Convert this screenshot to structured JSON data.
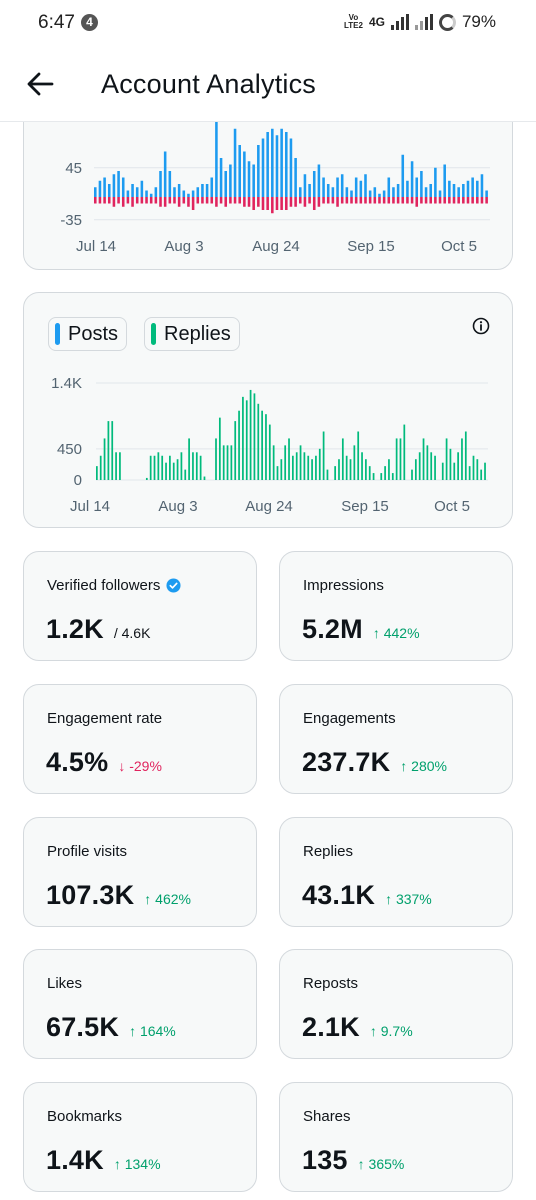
{
  "status_bar": {
    "time": "6:47",
    "notification_count": "4",
    "volte": "Vo LTE2",
    "network": "4G",
    "battery": "79%"
  },
  "header": {
    "title": "Account Analytics"
  },
  "colors": {
    "posts": "#1d9bf0",
    "negative": "#e0245e",
    "replies": "#00ba7c",
    "up": "#00a06c",
    "down": "#e0245e"
  },
  "icons": {
    "back": "arrow-left-icon",
    "info": "info-icon",
    "verified": "verified-badge-icon"
  },
  "chart_data": [
    {
      "type": "bar",
      "xlabels": [
        "Jul 14",
        "Aug 3",
        "Aug 24",
        "Sep 15",
        "Oct 5"
      ],
      "yticks": [
        "45",
        "-35"
      ],
      "series": [
        {
          "color": "#1d9bf0",
          "values": [
            15,
            25,
            30,
            20,
            35,
            40,
            30,
            10,
            20,
            15,
            25,
            10,
            5,
            15,
            40,
            70,
            40,
            15,
            20,
            10,
            5,
            10,
            15,
            20,
            20,
            30,
            120,
            60,
            40,
            50,
            105,
            80,
            70,
            55,
            50,
            80,
            90,
            100,
            105,
            95,
            105,
            100,
            90,
            60,
            15,
            35,
            20,
            40,
            50,
            30,
            20,
            15,
            30,
            35,
            15,
            10,
            30,
            25,
            35,
            10,
            15,
            5,
            10,
            30,
            15,
            20,
            65,
            25,
            55,
            30,
            40,
            15,
            20,
            45,
            10,
            50,
            25,
            20,
            15,
            20,
            25,
            30,
            25,
            35,
            10
          ]
        },
        {
          "color": "#e0245e",
          "values": [
            -10,
            -10,
            -10,
            -10,
            -15,
            -10,
            -15,
            -10,
            -15,
            -10,
            -10,
            -10,
            -10,
            -10,
            -15,
            -15,
            -10,
            -10,
            -15,
            -10,
            -15,
            -20,
            -10,
            -10,
            -10,
            -10,
            -15,
            -10,
            -15,
            -10,
            -10,
            -10,
            -15,
            -15,
            -20,
            -15,
            -20,
            -20,
            -25,
            -20,
            -20,
            -20,
            -15,
            -15,
            -10,
            -15,
            -10,
            -20,
            -15,
            -10,
            -10,
            -10,
            -15,
            -10,
            -10,
            -10,
            -10,
            -10,
            -10,
            -10,
            -10,
            -10,
            -10,
            -10,
            -10,
            -10,
            -10,
            -10,
            -10,
            -15,
            -10,
            -10,
            -10,
            -10,
            -10,
            -10,
            -10,
            -10,
            -10,
            -10,
            -10,
            -10,
            -10,
            -10,
            -10
          ]
        }
      ]
    },
    {
      "type": "bar",
      "legend": [
        "Posts",
        "Replies"
      ],
      "xlabels": [
        "Jul 14",
        "Aug 3",
        "Aug 24",
        "Sep 15",
        "Oct 5"
      ],
      "yticks": [
        "1.4K",
        "450",
        "0"
      ],
      "ylim": [
        0,
        1400
      ],
      "series": [
        {
          "name": "Replies",
          "color": "#00ba7c",
          "values": [
            200,
            350,
            600,
            850,
            850,
            400,
            400,
            0,
            0,
            0,
            0,
            0,
            0,
            30,
            350,
            350,
            400,
            350,
            250,
            350,
            250,
            300,
            400,
            150,
            600,
            400,
            400,
            350,
            50,
            0,
            0,
            600,
            900,
            500,
            500,
            500,
            850,
            1000,
            1200,
            1150,
            1300,
            1250,
            1100,
            1000,
            950,
            800,
            500,
            200,
            300,
            500,
            600,
            350,
            400,
            500,
            400,
            350,
            300,
            350,
            450,
            700,
            150,
            0,
            200,
            300,
            600,
            350,
            300,
            500,
            700,
            400,
            300,
            200,
            100,
            0,
            100,
            200,
            300,
            100,
            600,
            600,
            800,
            0,
            150,
            300,
            400,
            600,
            500,
            400,
            350,
            0,
            250,
            600,
            450,
            250,
            400,
            600,
            700,
            200,
            350,
            300,
            150,
            250
          ]
        },
        {
          "name": "Posts",
          "color": "#1d9bf0",
          "values": []
        }
      ]
    }
  ],
  "stats": [
    {
      "label": "Verified followers",
      "value": "1.2K",
      "sub": "/ 4.6K",
      "change": "",
      "verified": true
    },
    {
      "label": "Impressions",
      "value": "5.2M",
      "sub": "",
      "change": "↑ 442%",
      "direction": "up"
    },
    {
      "label": "Engagement rate",
      "value": "4.5%",
      "sub": "",
      "change": "↓ -29%",
      "direction": "down"
    },
    {
      "label": "Engagements",
      "value": "237.7K",
      "sub": "",
      "change": "↑ 280%",
      "direction": "up"
    },
    {
      "label": "Profile visits",
      "value": "107.3K",
      "sub": "",
      "change": "↑ 462%",
      "direction": "up"
    },
    {
      "label": "Replies",
      "value": "43.1K",
      "sub": "",
      "change": "↑ 337%",
      "direction": "up"
    },
    {
      "label": "Likes",
      "value": "67.5K",
      "sub": "",
      "change": "↑ 164%",
      "direction": "up"
    },
    {
      "label": "Reposts",
      "value": "2.1K",
      "sub": "",
      "change": "↑ 9.7%",
      "direction": "up"
    },
    {
      "label": "Bookmarks",
      "value": "1.4K",
      "sub": "",
      "change": "↑ 134%",
      "direction": "up"
    },
    {
      "label": "Shares",
      "value": "135",
      "sub": "",
      "change": "↑ 365%",
      "direction": "up"
    }
  ]
}
